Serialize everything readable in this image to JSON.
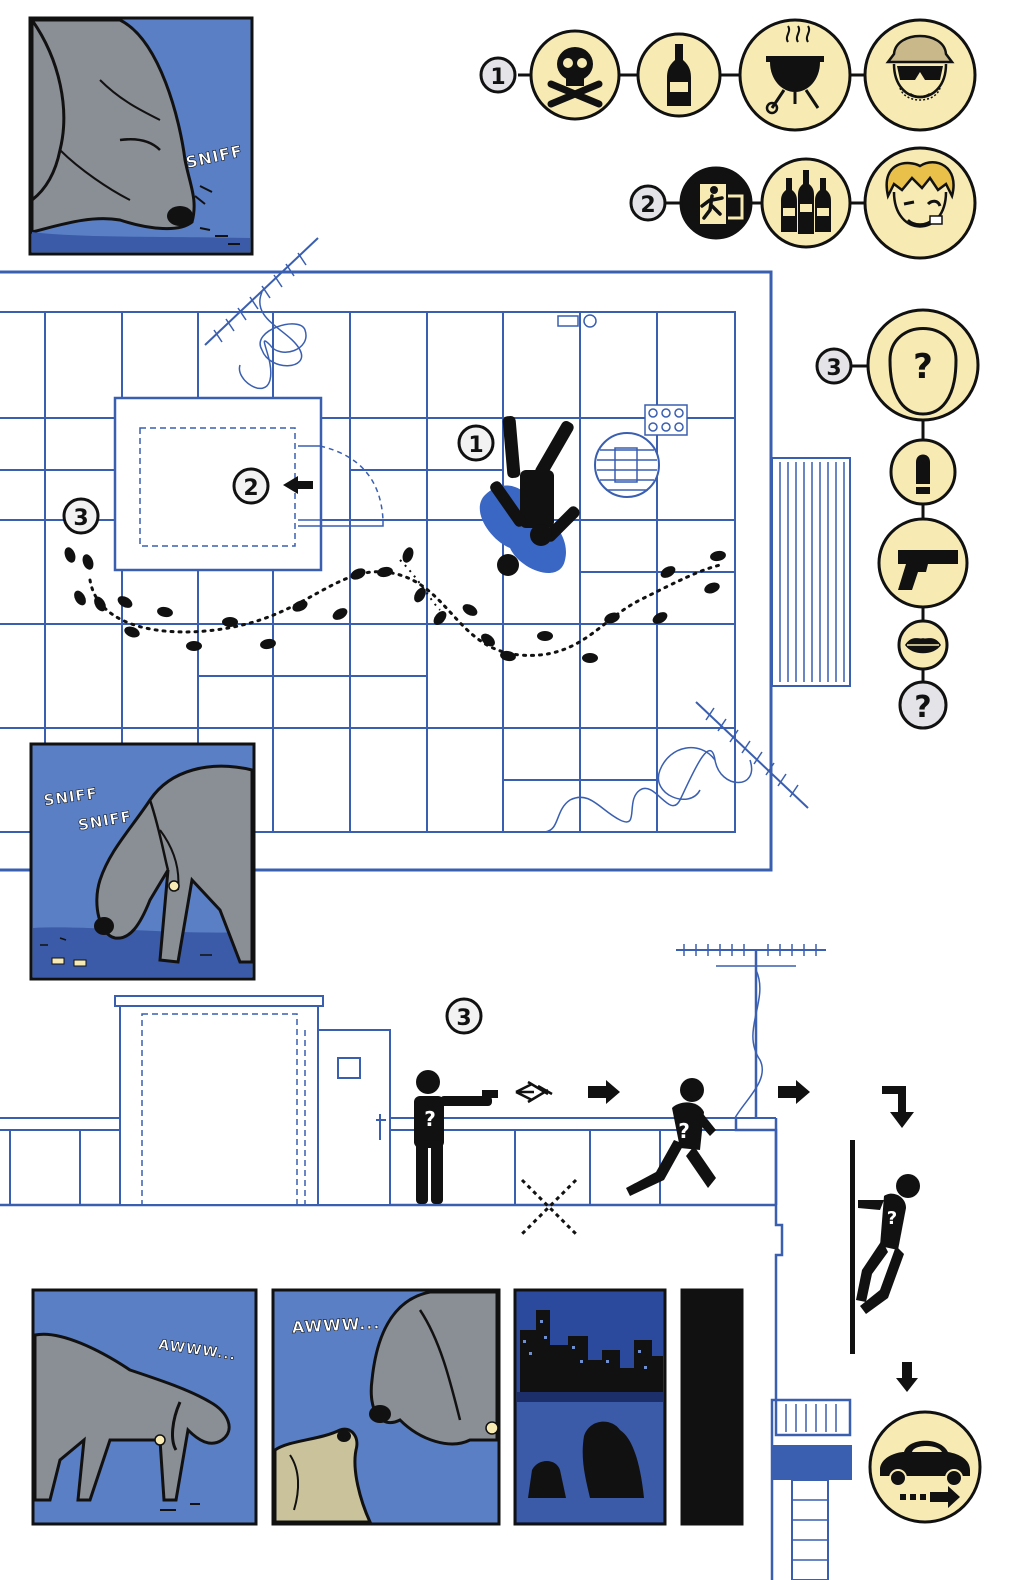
{
  "colors": {
    "blueprint_line": "#3a5fb0",
    "panel_blue": "#5a7fc4",
    "night_blue": "#2b4a9e",
    "icon_cream": "#f7ebb3",
    "ink": "#111111",
    "dog_gray": "#8a8e95",
    "blood_blue": "#3a66c4"
  },
  "sfx": {
    "panel1": "SNIFF",
    "panel2_line1": "SNIFF",
    "panel2_line2": "SNIFF",
    "panel3": "AWWW...",
    "panel4": "AWWW..."
  },
  "markers": {
    "one": "1",
    "two": "2",
    "three": "3"
  },
  "clue_rows": [
    {
      "number": "1",
      "icons": [
        "skull-crossbones-icon",
        "beer-bottle-icon",
        "grill-icon",
        "man-cap-sunglasses-icon"
      ]
    },
    {
      "number": "2",
      "icons": [
        "exit-sign-icon",
        "three-beer-bottles-icon",
        "blond-man-icon"
      ]
    },
    {
      "number": "3",
      "icons": [
        "unknown-person-icon",
        "bullet-icon",
        "pistol-icon",
        "lips-icon",
        "question-icon"
      ]
    }
  ],
  "question": "?",
  "escape_icons": [
    "arrow-right-icon",
    "arrow-right-icon",
    "arrow-turn-down-icon",
    "arrow-down-icon",
    "car-driving-icon"
  ]
}
